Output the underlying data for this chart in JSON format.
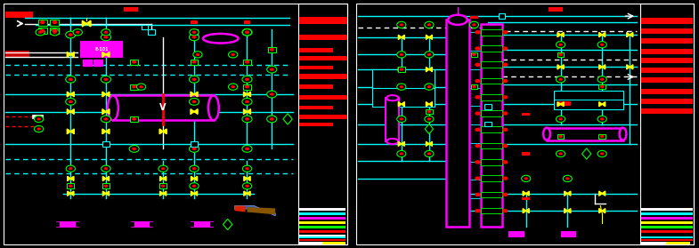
{
  "bg": "#000000",
  "cyan": "#00ffff",
  "magenta": "#ff00ff",
  "yellow": "#ffff00",
  "green": "#00ff00",
  "red": "#ff0000",
  "white": "#ffffff",
  "blue": "#0000ff",
  "orange": "#ff8800",
  "figsize": [
    7.85,
    2.79
  ],
  "dpi": 100,
  "lw_pipe": 1.0,
  "lw_vessel": 1.5
}
